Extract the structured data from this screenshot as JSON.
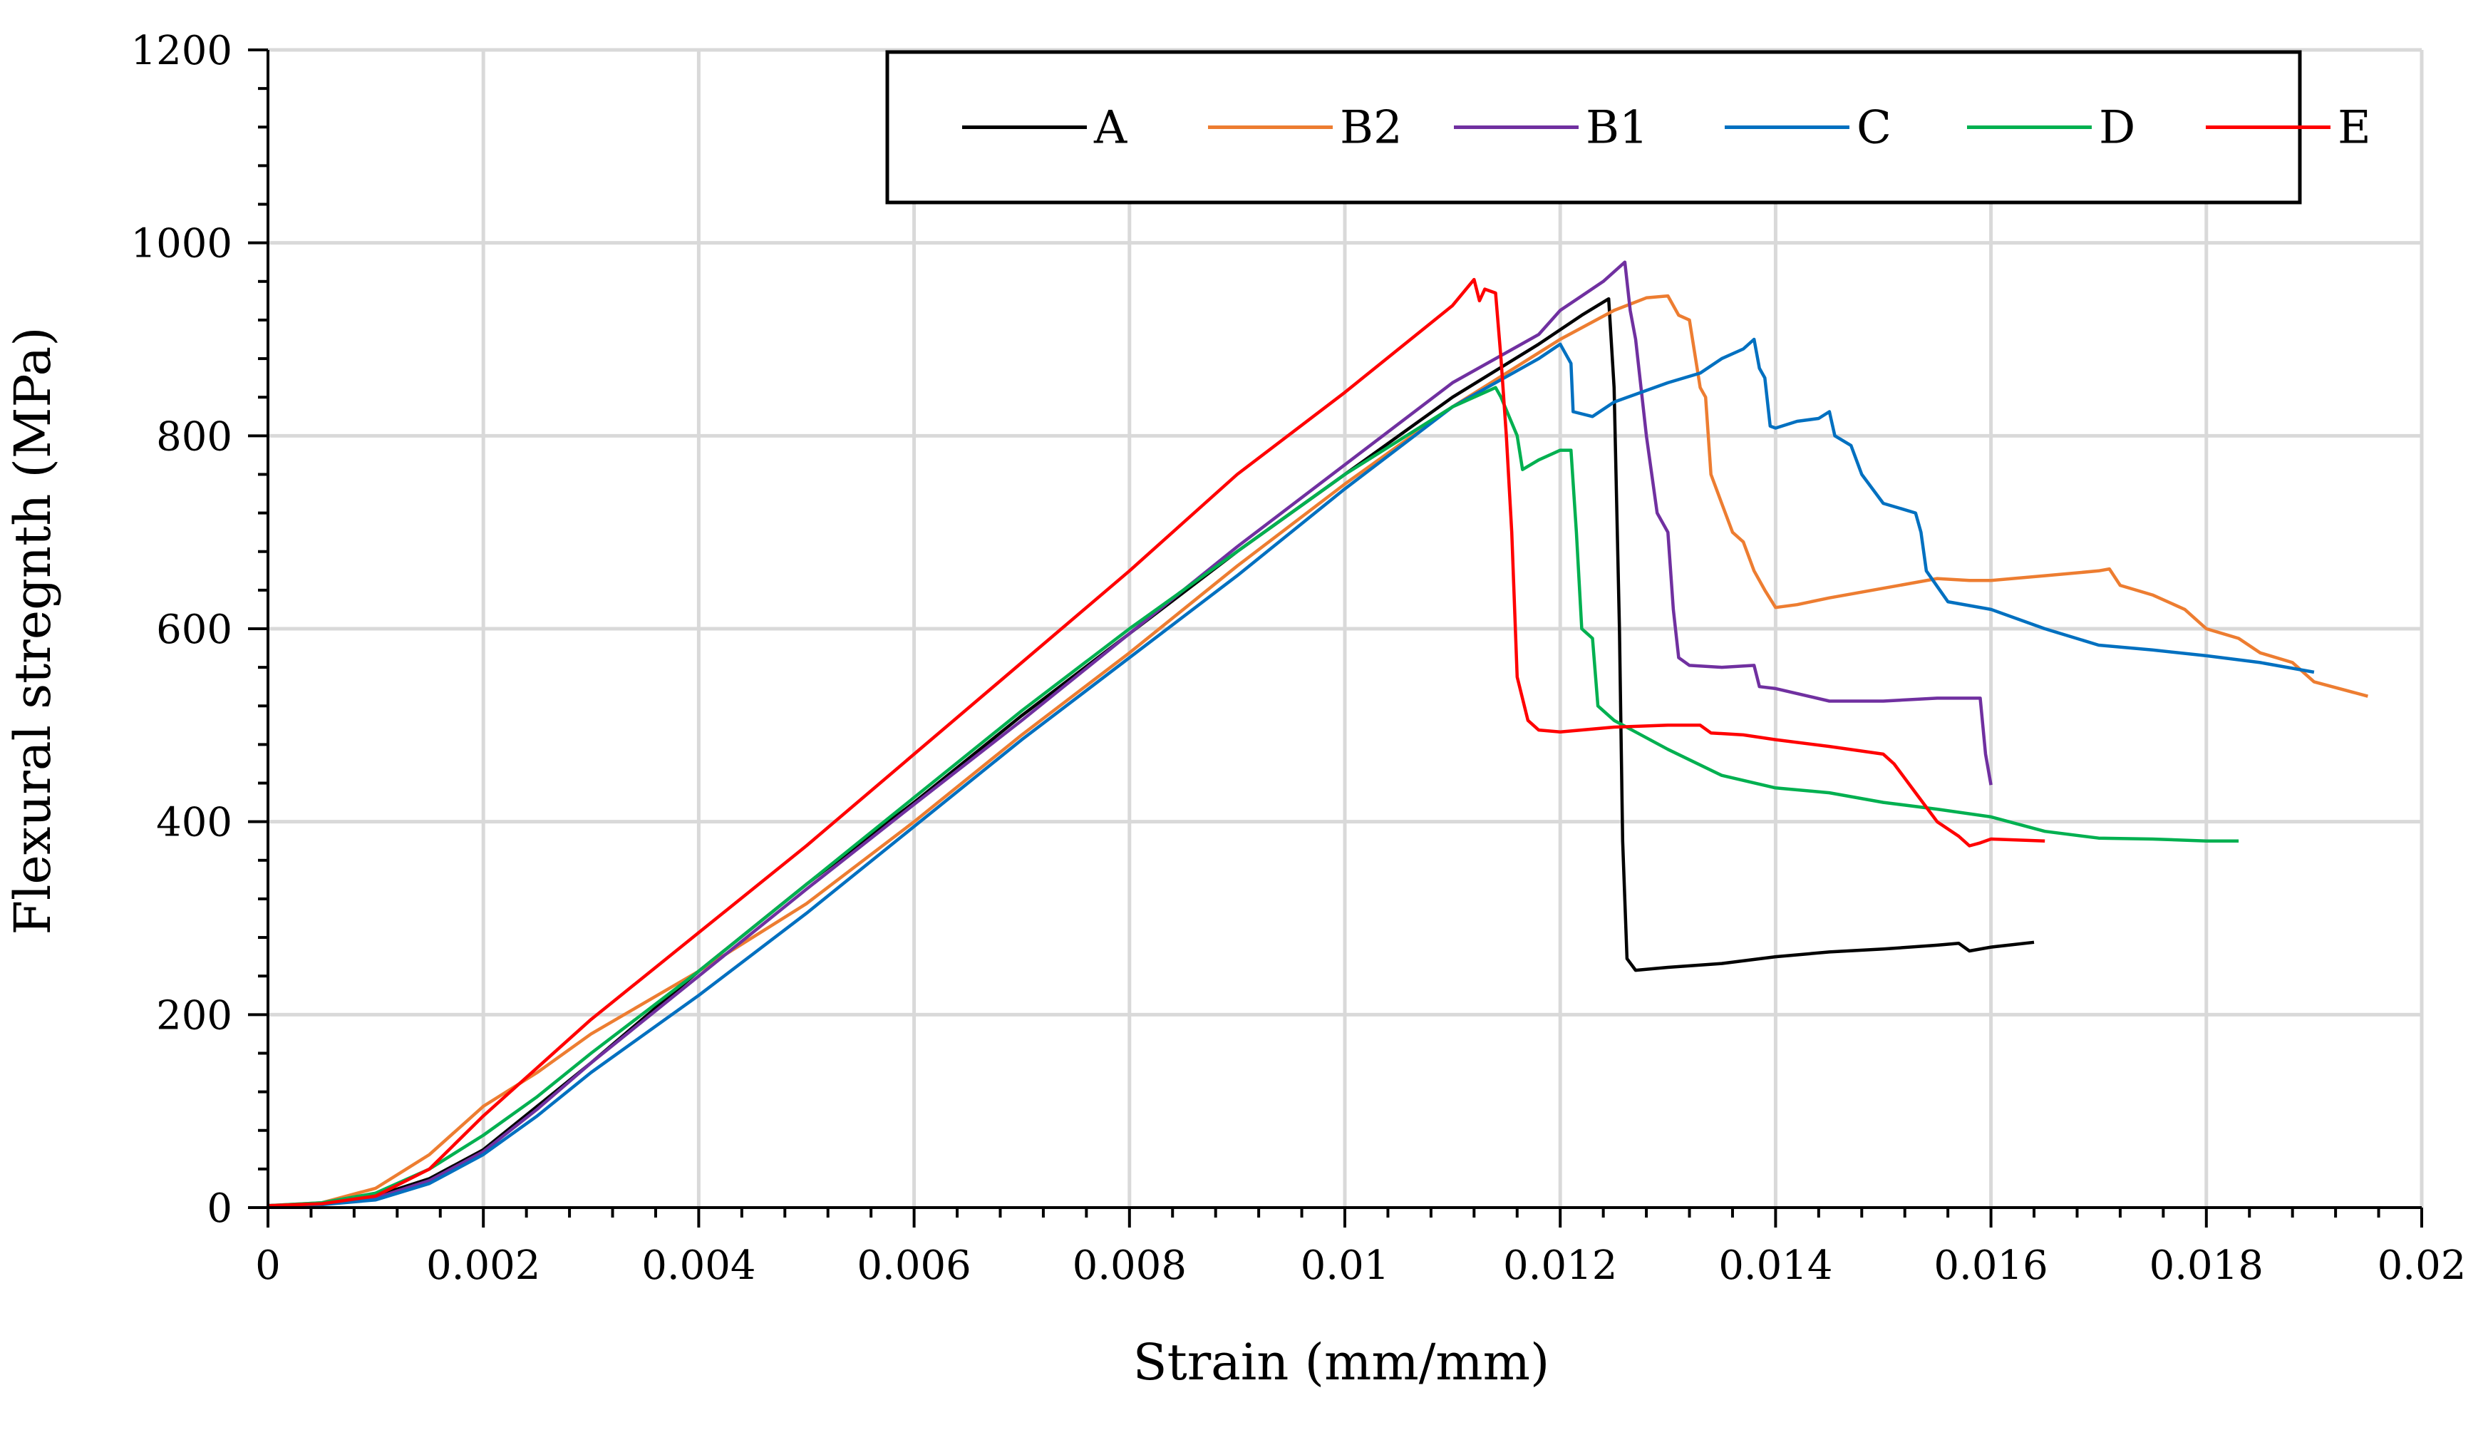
{
  "chart_data": {
    "type": "line",
    "title": "",
    "xlabel": "Strain (mm/mm)",
    "ylabel": "Flexural stregnth (MPa)",
    "xlim": [
      0,
      0.02
    ],
    "ylim": [
      0,
      1200
    ],
    "grid": true,
    "legend_position": "top-right",
    "x_ticks": [
      0,
      0.002,
      0.004,
      0.006,
      0.008,
      0.01,
      0.012,
      0.014,
      0.016,
      0.018,
      0.02
    ],
    "x_tick_labels": [
      "0",
      "0.002",
      "0.004",
      "0.006",
      "0.008",
      "0.01",
      "0.012",
      "0.014",
      "0.016",
      "0.018",
      "0.02"
    ],
    "y_ticks": [
      0,
      200,
      400,
      600,
      800,
      1000,
      1200
    ],
    "y_tick_labels": [
      "0",
      "200",
      "400",
      "600",
      "800",
      "1000",
      "1200"
    ],
    "series": [
      {
        "name": "A",
        "color": "#000000",
        "points": [
          [
            0,
            2
          ],
          [
            0.0005,
            4
          ],
          [
            0.001,
            12
          ],
          [
            0.0015,
            30
          ],
          [
            0.002,
            60
          ],
          [
            0.0025,
            105
          ],
          [
            0.003,
            150
          ],
          [
            0.004,
            245
          ],
          [
            0.005,
            335
          ],
          [
            0.006,
            420
          ],
          [
            0.007,
            510
          ],
          [
            0.008,
            595
          ],
          [
            0.009,
            680
          ],
          [
            0.01,
            760
          ],
          [
            0.011,
            840
          ],
          [
            0.0118,
            895
          ],
          [
            0.0122,
            925
          ],
          [
            0.01245,
            942
          ],
          [
            0.0125,
            850
          ],
          [
            0.01255,
            600
          ],
          [
            0.01258,
            380
          ],
          [
            0.01262,
            258
          ],
          [
            0.0127,
            246
          ],
          [
            0.013,
            249
          ],
          [
            0.0135,
            253
          ],
          [
            0.014,
            260
          ],
          [
            0.0145,
            265
          ],
          [
            0.015,
            268
          ],
          [
            0.0155,
            272
          ],
          [
            0.0157,
            274
          ],
          [
            0.0158,
            266
          ],
          [
            0.016,
            270
          ],
          [
            0.0164,
            275
          ]
        ]
      },
      {
        "name": "B2",
        "color": "#ed7d31",
        "points": [
          [
            0,
            2
          ],
          [
            0.0005,
            5
          ],
          [
            0.001,
            20
          ],
          [
            0.0015,
            55
          ],
          [
            0.002,
            105
          ],
          [
            0.0025,
            140
          ],
          [
            0.003,
            180
          ],
          [
            0.004,
            245
          ],
          [
            0.005,
            315
          ],
          [
            0.006,
            400
          ],
          [
            0.007,
            490
          ],
          [
            0.008,
            575
          ],
          [
            0.009,
            665
          ],
          [
            0.01,
            750
          ],
          [
            0.011,
            830
          ],
          [
            0.012,
            900
          ],
          [
            0.0125,
            930
          ],
          [
            0.0128,
            943
          ],
          [
            0.013,
            945
          ],
          [
            0.0131,
            925
          ],
          [
            0.0132,
            920
          ],
          [
            0.0133,
            850
          ],
          [
            0.01335,
            840
          ],
          [
            0.0134,
            760
          ],
          [
            0.0135,
            730
          ],
          [
            0.0136,
            700
          ],
          [
            0.0137,
            690
          ],
          [
            0.0138,
            660
          ],
          [
            0.0139,
            640
          ],
          [
            0.014,
            622
          ],
          [
            0.0142,
            625
          ],
          [
            0.0145,
            632
          ],
          [
            0.015,
            642
          ],
          [
            0.0155,
            652
          ],
          [
            0.0158,
            650
          ],
          [
            0.016,
            650
          ],
          [
            0.0165,
            655
          ],
          [
            0.017,
            660
          ],
          [
            0.0171,
            662
          ],
          [
            0.0172,
            645
          ],
          [
            0.0175,
            635
          ],
          [
            0.0178,
            620
          ],
          [
            0.018,
            600
          ],
          [
            0.0183,
            590
          ],
          [
            0.0185,
            575
          ],
          [
            0.0188,
            565
          ],
          [
            0.019,
            545
          ],
          [
            0.0195,
            530
          ]
        ]
      },
      {
        "name": "B1",
        "color": "#7030a0",
        "points": [
          [
            0,
            2
          ],
          [
            0.0005,
            4
          ],
          [
            0.001,
            10
          ],
          [
            0.0015,
            28
          ],
          [
            0.002,
            58
          ],
          [
            0.0025,
            102
          ],
          [
            0.003,
            150
          ],
          [
            0.004,
            240
          ],
          [
            0.005,
            330
          ],
          [
            0.006,
            418
          ],
          [
            0.007,
            505
          ],
          [
            0.008,
            595
          ],
          [
            0.009,
            685
          ],
          [
            0.01,
            770
          ],
          [
            0.011,
            855
          ],
          [
            0.0118,
            905
          ],
          [
            0.012,
            930
          ],
          [
            0.0122,
            945
          ],
          [
            0.0124,
            960
          ],
          [
            0.0126,
            980
          ],
          [
            0.01265,
            930
          ],
          [
            0.0127,
            900
          ],
          [
            0.0128,
            800
          ],
          [
            0.0129,
            720
          ],
          [
            0.013,
            700
          ],
          [
            0.01305,
            620
          ],
          [
            0.0131,
            570
          ],
          [
            0.0132,
            562
          ],
          [
            0.0135,
            560
          ],
          [
            0.0138,
            562
          ],
          [
            0.01385,
            540
          ],
          [
            0.014,
            538
          ],
          [
            0.0145,
            525
          ],
          [
            0.015,
            525
          ],
          [
            0.0155,
            528
          ],
          [
            0.0159,
            528
          ],
          [
            0.01595,
            470
          ],
          [
            0.016,
            438
          ]
        ]
      },
      {
        "name": "C",
        "color": "#0070c0",
        "points": [
          [
            0,
            2
          ],
          [
            0.0005,
            3
          ],
          [
            0.001,
            8
          ],
          [
            0.0015,
            25
          ],
          [
            0.002,
            55
          ],
          [
            0.0025,
            95
          ],
          [
            0.003,
            140
          ],
          [
            0.004,
            220
          ],
          [
            0.005,
            305
          ],
          [
            0.006,
            395
          ],
          [
            0.007,
            485
          ],
          [
            0.008,
            570
          ],
          [
            0.009,
            655
          ],
          [
            0.01,
            745
          ],
          [
            0.011,
            830
          ],
          [
            0.0118,
            880
          ],
          [
            0.012,
            895
          ],
          [
            0.0121,
            875
          ],
          [
            0.01212,
            825
          ],
          [
            0.0123,
            820
          ],
          [
            0.0125,
            835
          ],
          [
            0.013,
            855
          ],
          [
            0.0133,
            865
          ],
          [
            0.0135,
            880
          ],
          [
            0.0137,
            890
          ],
          [
            0.0138,
            900
          ],
          [
            0.01385,
            870
          ],
          [
            0.0139,
            860
          ],
          [
            0.01395,
            810
          ],
          [
            0.014,
            808
          ],
          [
            0.0142,
            815
          ],
          [
            0.0144,
            818
          ],
          [
            0.0145,
            825
          ],
          [
            0.01455,
            800
          ],
          [
            0.0147,
            790
          ],
          [
            0.0148,
            760
          ],
          [
            0.015,
            730
          ],
          [
            0.0153,
            720
          ],
          [
            0.01535,
            700
          ],
          [
            0.0154,
            660
          ],
          [
            0.0156,
            628
          ],
          [
            0.016,
            620
          ],
          [
            0.0165,
            600
          ],
          [
            0.017,
            583
          ],
          [
            0.0175,
            578
          ],
          [
            0.018,
            572
          ],
          [
            0.0185,
            565
          ],
          [
            0.019,
            555
          ]
        ]
      },
      {
        "name": "D",
        "color": "#00b050",
        "points": [
          [
            0,
            2
          ],
          [
            0.0005,
            5
          ],
          [
            0.001,
            15
          ],
          [
            0.0015,
            40
          ],
          [
            0.002,
            75
          ],
          [
            0.0025,
            115
          ],
          [
            0.003,
            160
          ],
          [
            0.004,
            245
          ],
          [
            0.005,
            335
          ],
          [
            0.006,
            425
          ],
          [
            0.007,
            515
          ],
          [
            0.008,
            600
          ],
          [
            0.009,
            680
          ],
          [
            0.01,
            760
          ],
          [
            0.011,
            830
          ],
          [
            0.0114,
            850
          ],
          [
            0.01145,
            840
          ],
          [
            0.0116,
            800
          ],
          [
            0.01165,
            765
          ],
          [
            0.0118,
            775
          ],
          [
            0.012,
            785
          ],
          [
            0.0121,
            785
          ],
          [
            0.01215,
            700
          ],
          [
            0.0122,
            600
          ],
          [
            0.0123,
            590
          ],
          [
            0.01235,
            520
          ],
          [
            0.0125,
            505
          ],
          [
            0.013,
            475
          ],
          [
            0.0135,
            448
          ],
          [
            0.014,
            435
          ],
          [
            0.0145,
            430
          ],
          [
            0.015,
            420
          ],
          [
            0.0155,
            413
          ],
          [
            0.016,
            405
          ],
          [
            0.0165,
            390
          ],
          [
            0.017,
            383
          ],
          [
            0.0175,
            382
          ],
          [
            0.018,
            380
          ],
          [
            0.0183,
            380
          ]
        ]
      },
      {
        "name": "E",
        "color": "#ff0000",
        "points": [
          [
            0,
            2
          ],
          [
            0.0005,
            4
          ],
          [
            0.001,
            12
          ],
          [
            0.0015,
            40
          ],
          [
            0.002,
            95
          ],
          [
            0.0025,
            145
          ],
          [
            0.003,
            195
          ],
          [
            0.004,
            285
          ],
          [
            0.005,
            375
          ],
          [
            0.006,
            470
          ],
          [
            0.007,
            565
          ],
          [
            0.008,
            660
          ],
          [
            0.009,
            760
          ],
          [
            0.01,
            845
          ],
          [
            0.011,
            935
          ],
          [
            0.0112,
            962
          ],
          [
            0.01125,
            940
          ],
          [
            0.0113,
            952
          ],
          [
            0.0114,
            948
          ],
          [
            0.01145,
            880
          ],
          [
            0.0115,
            800
          ],
          [
            0.01155,
            700
          ],
          [
            0.0116,
            550
          ],
          [
            0.0117,
            505
          ],
          [
            0.0118,
            495
          ],
          [
            0.012,
            493
          ],
          [
            0.0125,
            498
          ],
          [
            0.013,
            500
          ],
          [
            0.0133,
            500
          ],
          [
            0.0134,
            492
          ],
          [
            0.0137,
            490
          ],
          [
            0.014,
            485
          ],
          [
            0.0145,
            478
          ],
          [
            0.015,
            470
          ],
          [
            0.0151,
            460
          ],
          [
            0.0153,
            430
          ],
          [
            0.0155,
            400
          ],
          [
            0.0157,
            385
          ],
          [
            0.0158,
            375
          ],
          [
            0.0159,
            378
          ],
          [
            0.016,
            382
          ],
          [
            0.0165,
            380
          ]
        ]
      }
    ]
  }
}
